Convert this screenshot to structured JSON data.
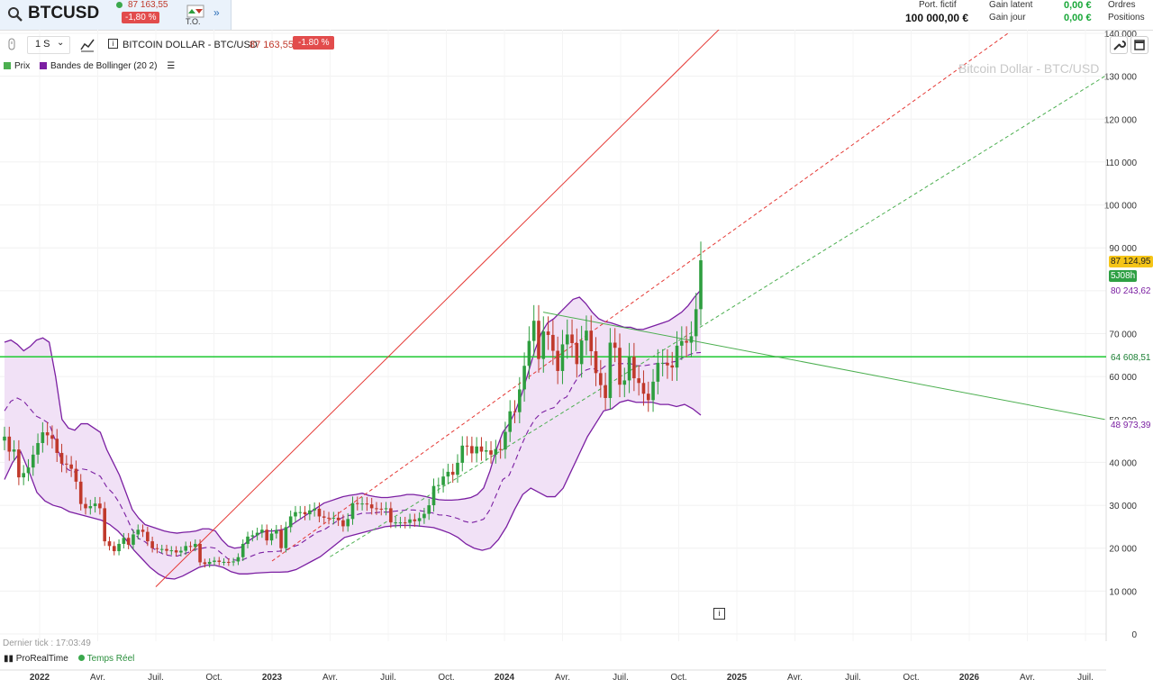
{
  "header": {
    "symbol": "BTCUSD",
    "price": "87 163,55",
    "change": "-1,80 %",
    "to_label": "T.O.",
    "portfolio_label": "Port. fictif",
    "portfolio_value": "100 000,00 €",
    "gain_latent_label": "Gain latent",
    "gain_jour_label": "Gain jour",
    "gain_latent_value": "0,00 €",
    "gain_jour_value": "0,00 €",
    "ordres_label": "Ordres",
    "positions_label": "Positions"
  },
  "toolbar": {
    "timeframe": "1 S",
    "instrument": "BITCOIN DOLLAR - BTC/USD",
    "price": "87 163,55",
    "change": "-1.80 %"
  },
  "legend": {
    "price_label": "Prix",
    "bollinger_label": "Bandes de Bollinger (20 2)"
  },
  "watermark": "Bitcoin Dollar - BTC/USD",
  "footer": {
    "last_tick": "Dernier tick : 17:03:49",
    "brand": "ProRealTime",
    "realtime": "Temps Réel"
  },
  "price_tags": {
    "current": "87 124,95",
    "countdown": "5J08h",
    "bb_upper": "80 243,62",
    "support": "64 608,51",
    "bb_lower": "48 973,39"
  },
  "colors": {
    "up": "#2e9e3f",
    "down": "#c0392b",
    "bollinger": "#7b1fa2",
    "bollinger_fill": "#f1e1f6",
    "trend_red": "#e53935",
    "trend_green": "#4caf50",
    "support": "#2ecc40"
  },
  "chart_data": {
    "type": "candlestick",
    "y_ticks": [
      0,
      10000,
      20000,
      30000,
      40000,
      50000,
      60000,
      70000,
      80000,
      90000,
      100000,
      110000,
      120000,
      130000,
      140000
    ],
    "y_tick_labels": [
      "0",
      "10 000",
      "20 000",
      "30 000",
      "40 000",
      "50 000",
      "60 000",
      "70 000",
      "80 000",
      "90 000",
      "100 000",
      "110 000",
      "120 000",
      "130 000",
      "140 000"
    ],
    "x_tick_labels": [
      "2022",
      "Avr.",
      "Juil.",
      "Oct.",
      "2023",
      "Avr.",
      "Juil.",
      "Oct.",
      "2024",
      "Avr.",
      "Juil.",
      "Oct.",
      "2025",
      "Avr.",
      "Juil.",
      "Oct.",
      "2026",
      "Avr.",
      "Juil."
    ],
    "y_range": [
      0,
      140000
    ],
    "support_level": 64608.51,
    "closes": [
      46000,
      42500,
      43000,
      36500,
      37500,
      38800,
      41800,
      44500,
      47000,
      46300,
      45500,
      42200,
      39700,
      39500,
      38500,
      35500,
      30300,
      29300,
      29800,
      30400,
      29300,
      21600,
      20500,
      19300,
      21000,
      22400,
      20800,
      23200,
      24300,
      23800,
      21600,
      20000,
      19800,
      19800,
      19400,
      19500,
      19000,
      19400,
      20500,
      20300,
      21000,
      16700,
      16300,
      16800,
      17100,
      16800,
      16800,
      16700,
      16900,
      17900,
      21000,
      22700,
      23000,
      23600,
      24300,
      21800,
      23400,
      24200,
      20000,
      24900,
      27400,
      28400,
      28400,
      27900,
      28800,
      29200,
      27400,
      27100,
      26900,
      27100,
      26500,
      25100,
      26800,
      30500,
      30300,
      30400,
      30200,
      29300,
      29200,
      29100,
      29300,
      26000,
      26000,
      26000,
      25900,
      26700,
      26300,
      27000,
      28000,
      30000,
      34500,
      34700,
      36700,
      37800,
      37100,
      39900,
      43900,
      43800,
      42100,
      43700,
      42500,
      42800,
      41800,
      43100,
      43000,
      47100,
      51900,
      51700,
      57000,
      62500,
      68300,
      73000,
      64100,
      70500,
      69700,
      66000,
      61300,
      67500,
      69800,
      67800,
      62900,
      68400,
      70700,
      65900,
      60800,
      58000,
      55000,
      67900,
      66700,
      58100,
      59100,
      64600,
      59600,
      58500,
      56000,
      54500,
      58800,
      63200,
      63200,
      62600,
      62100,
      67200,
      68300,
      67900,
      69400,
      75700,
      87100
    ],
    "bb_upper": [
      68000,
      68500,
      67500,
      66000,
      67000,
      68500,
      69000,
      68000,
      60000,
      50000,
      48000,
      47500,
      49000,
      49000,
      48000,
      47000,
      43000,
      40000,
      37000,
      33000,
      29000,
      27000,
      25500,
      25000,
      24500,
      24000,
      23700,
      23500,
      23700,
      23800,
      24000,
      24500,
      24500,
      24000,
      22000,
      20500,
      20000,
      20200,
      21500,
      22500,
      23500,
      24000,
      24000,
      24200,
      24500,
      25500,
      26500,
      27500,
      28500,
      29500,
      30500,
      31000,
      31500,
      32000,
      32300,
      32500,
      32800,
      32300,
      32000,
      31800,
      31800,
      32000,
      32200,
      32500,
      32500,
      32300,
      32000,
      31600,
      31300,
      31200,
      31200,
      31300,
      31500,
      31800,
      32500,
      34000,
      38000,
      43000,
      47000,
      49000,
      52000,
      56000,
      61000,
      66000,
      70000,
      72500,
      73500,
      75000,
      76500,
      78000,
      78500,
      77000,
      75000,
      73500,
      72800,
      72500,
      72000,
      71500,
      71500,
      71000,
      71000,
      71500,
      72000,
      72500,
      73000,
      74000,
      75000,
      76500,
      78500,
      80200
    ],
    "bb_lower": [
      36000,
      40000,
      42500,
      38000,
      33000,
      31000,
      30000,
      29500,
      28500,
      28000,
      27500,
      27000,
      26500,
      25500,
      24000,
      22000,
      19500,
      17500,
      15500,
      14000,
      13000,
      12800,
      13500,
      14500,
      15500,
      16000,
      16000,
      15500,
      14500,
      14000,
      14000,
      14200,
      14300,
      14400,
      14400,
      14500,
      15000,
      16000,
      17000,
      18000,
      19500,
      21000,
      22500,
      23000,
      23500,
      24000,
      24500,
      25000,
      25200,
      25300,
      25300,
      25200,
      25000,
      24800,
      24200,
      23500,
      22500,
      21000,
      20000,
      19500,
      20000,
      22000,
      25000,
      29000,
      32500,
      34000,
      33000,
      32000,
      32000,
      34000,
      38000,
      42000,
      46000,
      49000,
      52000,
      52500,
      54000,
      54500,
      54000,
      54000,
      54000,
      53500,
      53500,
      53000,
      53500,
      52500,
      51000
    ],
    "trendlines": [
      {
        "from": [
          "2022-07",
          11000
        ],
        "to": [
          "2025-01",
          145000
        ],
        "style": "solid",
        "color": "red"
      },
      {
        "from": [
          "2023-01",
          17000
        ],
        "to": [
          "2026-03",
          140000
        ],
        "style": "dashed",
        "color": "red"
      },
      {
        "from": [
          "2023-04",
          18000
        ],
        "to": [
          "2026-08",
          130000
        ],
        "style": "dashed",
        "color": "green"
      },
      {
        "from": [
          "2024-03",
          75000
        ],
        "to": [
          "2026-08",
          50000
        ],
        "style": "solid",
        "color": "green"
      }
    ]
  }
}
